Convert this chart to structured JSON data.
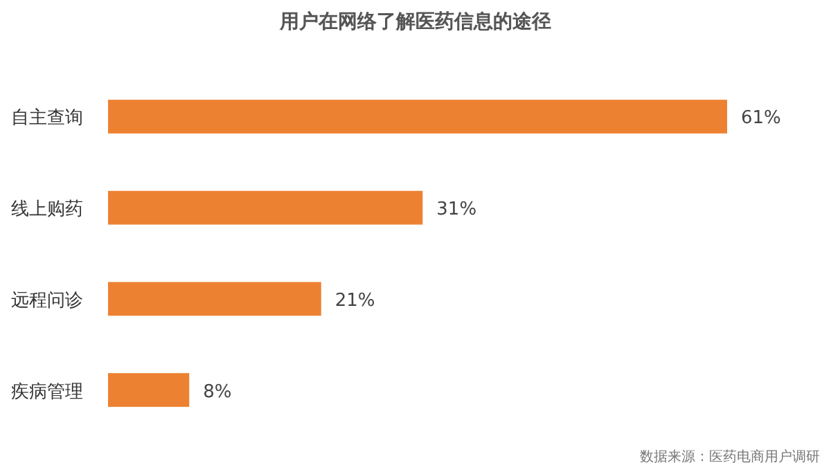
{
  "chart_data": {
    "type": "bar",
    "orientation": "horizontal",
    "title": "用户在网络了解医药信息的途径",
    "categories": [
      "自主查询",
      "线上购药",
      "远程问诊",
      "疾病管理"
    ],
    "values": [
      61,
      31,
      21,
      8
    ],
    "color": "#ed8132",
    "value_labels": [
      "61%",
      "31%",
      "21%",
      "8%"
    ],
    "annotations": [
      "数据来源：医药电商用户调研"
    ]
  }
}
